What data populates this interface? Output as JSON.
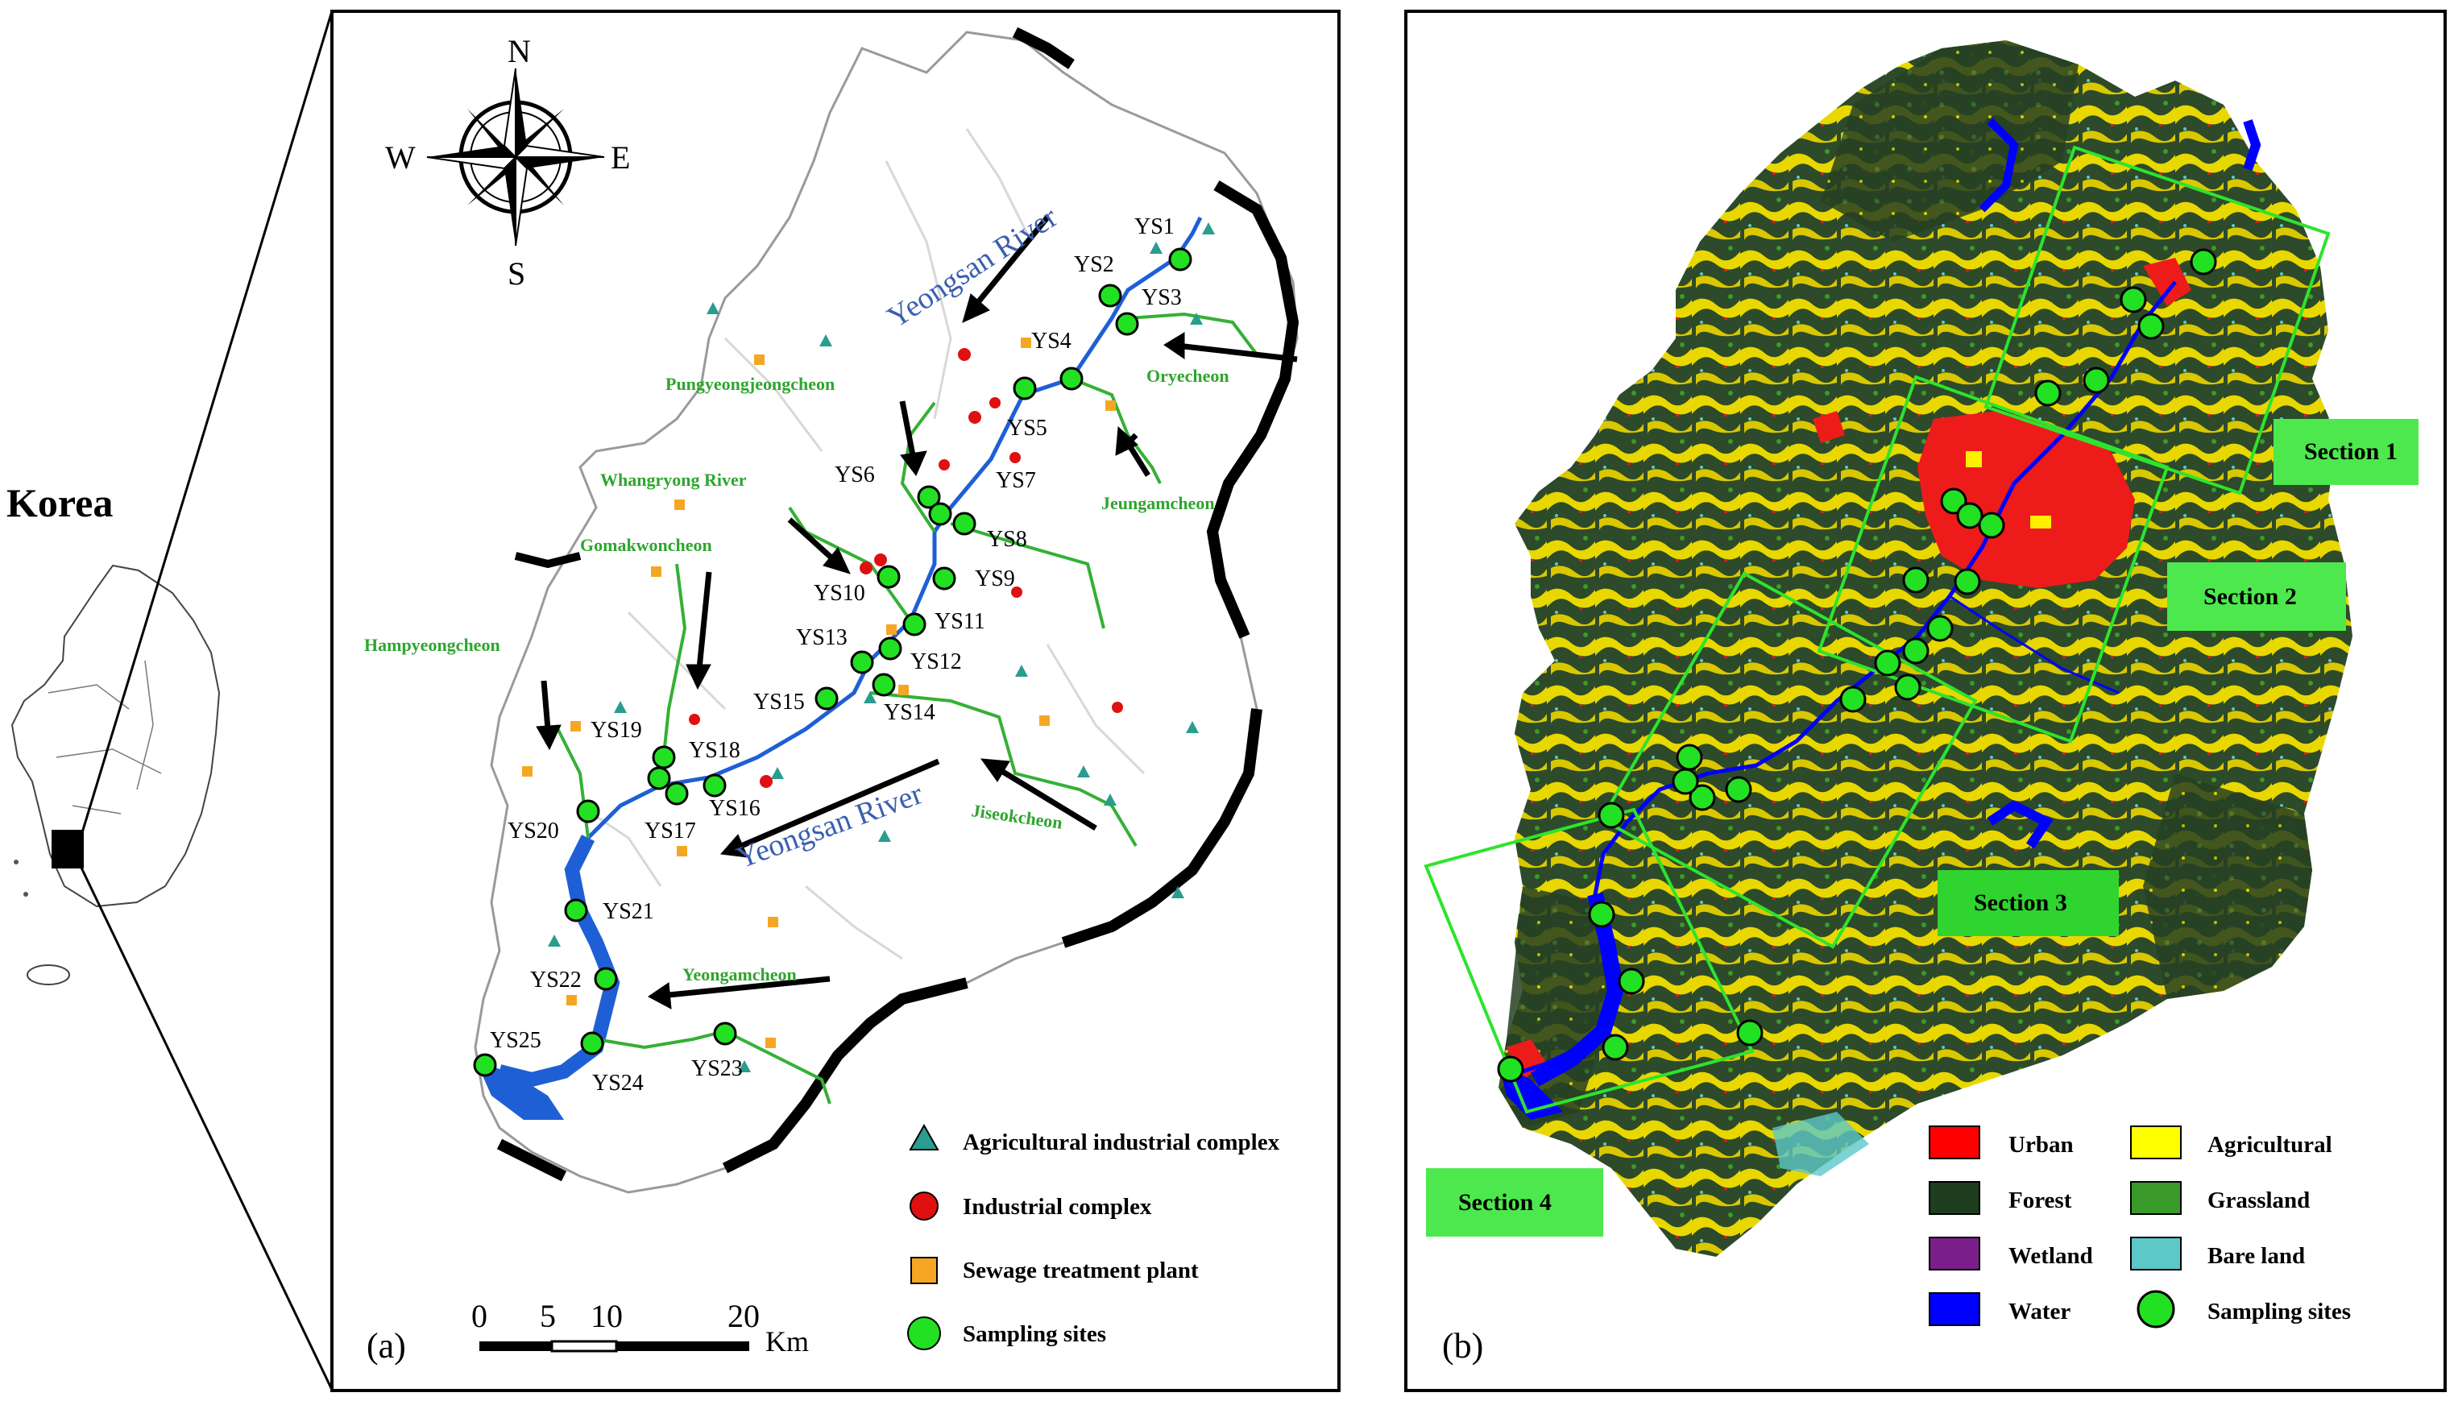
{
  "inset": {
    "label": "Korea"
  },
  "panel_a": {
    "letter": "(a)",
    "compass": {
      "n": "N",
      "s": "S",
      "e": "E",
      "w": "W"
    },
    "river_labels": [
      "Yeongsan River",
      "Yeongsan River"
    ],
    "tributaries": {
      "oryecheon": "Oryecheon",
      "pungyeong": "Pungyeongjeongcheon",
      "whangryong": "Whangryong River",
      "gomakwon": "Gomakwoncheon",
      "jeungam": "Jeungamcheon",
      "hampyeong": "Hampyeongcheon",
      "jiseok": "Jiseokcheon",
      "yeongam": "Yeongamcheon"
    },
    "sites": [
      "YS1",
      "YS2",
      "YS3",
      "YS4",
      "YS5",
      "YS6",
      "YS7",
      "YS8",
      "YS9",
      "YS10",
      "YS11",
      "YS12",
      "YS13",
      "YS14",
      "YS15",
      "YS16",
      "YS17",
      "YS18",
      "YS19",
      "YS20",
      "YS21",
      "YS22",
      "YS23",
      "YS24",
      "YS25"
    ],
    "legend": [
      {
        "symbol": "triangle",
        "label": "Agricultural industrial complex",
        "color": "#2a9d8f"
      },
      {
        "symbol": "circle",
        "label": "Industrial complex",
        "color": "#e01010"
      },
      {
        "symbol": "square",
        "label": "Sewage treatment plant",
        "color": "#f5a623"
      },
      {
        "symbol": "circle",
        "label": "Sampling sites",
        "color": "#22e022"
      }
    ],
    "scalebar": {
      "ticks": [
        "0",
        "5",
        "10",
        "20"
      ],
      "unit": "Km"
    }
  },
  "panel_b": {
    "letter": "(b)",
    "sections": [
      "Section 1",
      "Section 2",
      "Section 3",
      "Section 4"
    ],
    "legend": [
      {
        "label": "Urban",
        "color": "#ff0000"
      },
      {
        "label": "Agricultural",
        "color": "#ffff00"
      },
      {
        "label": "Forest",
        "color": "#1f3d1f"
      },
      {
        "label": "Grassland",
        "color": "#3a9a2a"
      },
      {
        "label": "Wetland",
        "color": "#7a1f8a"
      },
      {
        "label": "Bare land",
        "color": "#5cc8c8"
      },
      {
        "label": "Water",
        "color": "#0000ff"
      },
      {
        "label": "Sampling sites",
        "color": "#22e022"
      }
    ]
  }
}
